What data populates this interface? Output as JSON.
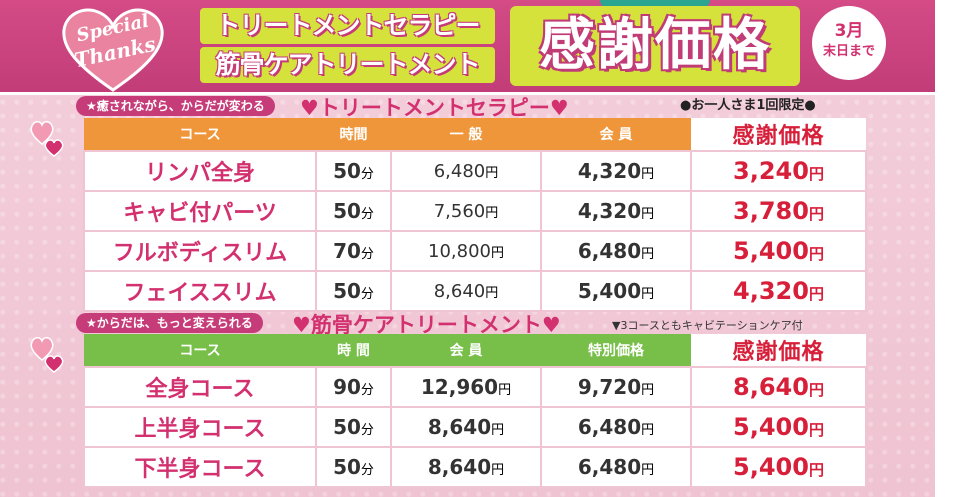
{
  "header": {
    "badge_line1": "Special",
    "badge_line2": "Thanks",
    "title_line1": "トリートメントセラピー",
    "title_line2": "筋骨ケアトリートメント",
    "big_title": "感謝価格",
    "period_line1": "3月",
    "period_line2": "末日まで",
    "limited": "●お一人さま1回限定●"
  },
  "colors": {
    "magenta": "#c63c79",
    "orange_header": "#f0963a",
    "green_header": "#78bf4a",
    "highlight_red": "#d81f3a",
    "title_bg": "#d5e23b"
  },
  "section1": {
    "tag": "★癒されながら、からだが変わる",
    "title": "♥トリートメントセラピー♥",
    "headers": [
      "コース",
      "時間",
      "一 般",
      "会 員",
      "感謝価格"
    ],
    "rows": [
      {
        "course": "リンパ全身",
        "time": "50",
        "general": "6,480",
        "member": "4,320",
        "price": "3,240"
      },
      {
        "course": "キャビ付パーツ",
        "time": "50",
        "general": "7,560",
        "member": "4,320",
        "price": "3,780"
      },
      {
        "course": "フルボディスリム",
        "time": "70",
        "general": "10,800",
        "member": "6,480",
        "price": "5,400"
      },
      {
        "course": "フェイススリム",
        "time": "50",
        "general": "8,640",
        "member": "5,400",
        "price": "4,320"
      }
    ]
  },
  "section2": {
    "tag": "★からだは、もっと変えられる",
    "title": "♥筋骨ケアトリートメント♥",
    "note": "▼3コースともキャビテーションケア付",
    "headers": [
      "コース",
      "時 間",
      "会 員",
      "特別価格",
      "感謝価格"
    ],
    "rows": [
      {
        "course": "全身コース",
        "time": "90",
        "member": "12,960",
        "special": "9,720",
        "price": "8,640"
      },
      {
        "course": "上半身コース",
        "time": "50",
        "member": "8,640",
        "special": "6,480",
        "price": "5,400"
      },
      {
        "course": "下半身コース",
        "time": "50",
        "member": "8,640",
        "special": "6,480",
        "price": "5,400"
      }
    ]
  },
  "units": {
    "minute": "分",
    "yen": "円"
  }
}
